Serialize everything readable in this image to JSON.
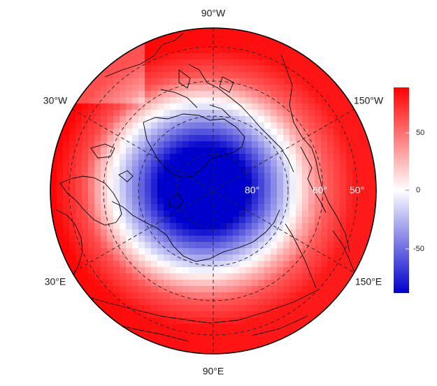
{
  "map": {
    "projection": "north polar stereographic",
    "longitude_labels": {
      "top": "90°W",
      "upper_left": "30°W",
      "upper_right": "150°W",
      "lower_left": "30°E",
      "lower_right": "150°E",
      "bottom": "90°E"
    },
    "latitude_labels": [
      "80°",
      "60°",
      "50°"
    ],
    "graticule": "dashed",
    "coastlines": true
  },
  "colorbar": {
    "ticks": [
      "50",
      "0",
      "-50"
    ],
    "min": -85,
    "max": 85,
    "colors": {
      "high": "#ff0000",
      "mid": "#ffffff",
      "low": "#0000cc"
    }
  },
  "field_pattern": {
    "description_shape": "strong negative core centered on pole region offset toward Greenland, positive ring at lower latitudes",
    "core_value": -85,
    "ring_value": 80
  }
}
